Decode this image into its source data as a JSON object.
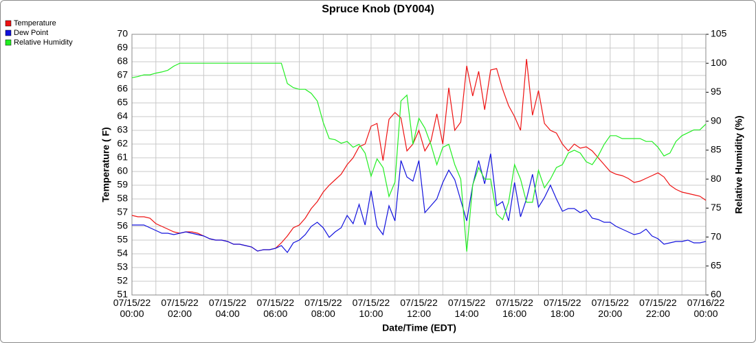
{
  "chart_data": {
    "type": "line",
    "title": "Spruce Knob (DY004)",
    "x_label": "Date/Time (EDT)",
    "y_label": "Temperature ( F)",
    "y2_label": "Relative Humidity (%)",
    "legend": "top-left",
    "grid": true,
    "ylim": [
      51,
      70
    ],
    "yticks": [
      51,
      52,
      53,
      54,
      55,
      56,
      57,
      58,
      59,
      60,
      61,
      62,
      63,
      64,
      65,
      66,
      67,
      68,
      69,
      70
    ],
    "y2lim": [
      60,
      105
    ],
    "y2ticks": [
      60,
      65,
      70,
      75,
      80,
      85,
      90,
      95,
      100,
      105
    ],
    "xlim": [
      "07/15/22 00:00",
      "07/16/22 00:00"
    ],
    "xticks": [
      {
        "value": "07/15/22 00:00",
        "label": [
          "07/15/22",
          "00:00"
        ]
      },
      {
        "value": "07/15/22 02:00",
        "label": [
          "07/15/22",
          "02:00"
        ]
      },
      {
        "value": "07/15/22 04:00",
        "label": [
          "07/15/22",
          "04:00"
        ]
      },
      {
        "value": "07/15/22 06:00",
        "label": [
          "07/15/22",
          "06:00"
        ]
      },
      {
        "value": "07/15/22 08:00",
        "label": [
          "07/15/22",
          "08:00"
        ]
      },
      {
        "value": "07/15/22 10:00",
        "label": [
          "07/15/22",
          "10:00"
        ]
      },
      {
        "value": "07/15/22 12:00",
        "label": [
          "07/15/22",
          "12:00"
        ]
      },
      {
        "value": "07/15/22 14:00",
        "label": [
          "07/15/22",
          "14:00"
        ]
      },
      {
        "value": "07/15/22 16:00",
        "label": [
          "07/15/22",
          "16:00"
        ]
      },
      {
        "value": "07/15/22 18:00",
        "label": [
          "07/15/22",
          "18:00"
        ]
      },
      {
        "value": "07/15/22 20:00",
        "label": [
          "07/15/22",
          "20:00"
        ]
      },
      {
        "value": "07/15/22 22:00",
        "label": [
          "07/15/22",
          "22:00"
        ]
      },
      {
        "value": "07/16/22 00:00",
        "label": [
          "07/16/22",
          "00:00"
        ]
      }
    ],
    "x": [
      "07/15/22 00:00",
      "07/15/22 00:15",
      "07/15/22 00:30",
      "07/15/22 00:45",
      "07/15/22 01:00",
      "07/15/22 01:15",
      "07/15/22 01:30",
      "07/15/22 01:45",
      "07/15/22 02:00",
      "07/15/22 02:15",
      "07/15/22 02:30",
      "07/15/22 02:45",
      "07/15/22 03:00",
      "07/15/22 03:15",
      "07/15/22 03:30",
      "07/15/22 03:45",
      "07/15/22 04:00",
      "07/15/22 04:15",
      "07/15/22 04:30",
      "07/15/22 04:45",
      "07/15/22 05:00",
      "07/15/22 05:15",
      "07/15/22 05:30",
      "07/15/22 05:45",
      "07/15/22 06:00",
      "07/15/22 06:15",
      "07/15/22 06:30",
      "07/15/22 06:45",
      "07/15/22 07:00",
      "07/15/22 07:15",
      "07/15/22 07:30",
      "07/15/22 07:45",
      "07/15/22 08:00",
      "07/15/22 08:15",
      "07/15/22 08:30",
      "07/15/22 08:45",
      "07/15/22 09:00",
      "07/15/22 09:15",
      "07/15/22 09:30",
      "07/15/22 09:45",
      "07/15/22 10:00",
      "07/15/22 10:15",
      "07/15/22 10:30",
      "07/15/22 10:45",
      "07/15/22 11:00",
      "07/15/22 11:15",
      "07/15/22 11:30",
      "07/15/22 11:45",
      "07/15/22 12:00",
      "07/15/22 12:15",
      "07/15/22 12:30",
      "07/15/22 12:45",
      "07/15/22 13:00",
      "07/15/22 13:15",
      "07/15/22 13:30",
      "07/15/22 13:45",
      "07/15/22 14:00",
      "07/15/22 14:15",
      "07/15/22 14:30",
      "07/15/22 14:45",
      "07/15/22 15:00",
      "07/15/22 15:15",
      "07/15/22 15:30",
      "07/15/22 15:45",
      "07/15/22 16:00",
      "07/15/22 16:15",
      "07/15/22 16:30",
      "07/15/22 16:45",
      "07/15/22 17:00",
      "07/15/22 17:15",
      "07/15/22 17:30",
      "07/15/22 17:45",
      "07/15/22 18:00",
      "07/15/22 18:15",
      "07/15/22 18:30",
      "07/15/22 18:45",
      "07/15/22 19:00",
      "07/15/22 19:15",
      "07/15/22 19:30",
      "07/15/22 19:45",
      "07/15/22 20:00",
      "07/15/22 20:15",
      "07/15/22 20:30",
      "07/15/22 20:45",
      "07/15/22 21:00",
      "07/15/22 21:15",
      "07/15/22 21:30",
      "07/15/22 21:45",
      "07/15/22 22:00",
      "07/15/22 22:15",
      "07/15/22 22:30",
      "07/15/22 22:45",
      "07/15/22 23:00",
      "07/15/22 23:15",
      "07/15/22 23:30",
      "07/15/22 23:45",
      "07/16/22 00:00"
    ],
    "series": [
      {
        "name": "Temperature",
        "color": "#ee1111",
        "values": [
          56.8,
          56.7,
          56.7,
          56.6,
          56.2,
          56.0,
          55.8,
          55.6,
          55.5,
          55.6,
          55.6,
          55.5,
          55.3,
          55.1,
          55.0,
          55.0,
          54.9,
          54.7,
          54.7,
          54.6,
          54.5,
          54.2,
          54.3,
          54.3,
          54.4,
          54.8,
          55.3,
          55.9,
          56.1,
          56.6,
          57.3,
          57.8,
          58.5,
          59.0,
          59.4,
          59.8,
          60.5,
          61.0,
          61.8,
          62.0,
          63.3,
          63.5,
          60.8,
          63.8,
          64.3,
          63.9,
          61.5,
          62.0,
          63.0,
          61.5,
          62.2,
          64.2,
          62.0,
          66.1,
          63.0,
          63.6,
          67.7,
          65.5,
          67.3,
          64.5,
          67.4,
          67.5,
          66.0,
          64.8,
          64.0,
          63.0,
          68.2,
          64.1,
          65.9,
          63.5,
          63.0,
          62.8,
          62.0,
          61.5,
          62.0,
          61.7,
          61.8,
          61.5,
          61.0,
          60.5,
          60.0,
          59.8,
          59.7,
          59.5,
          59.2,
          59.3,
          59.5,
          59.7,
          59.9,
          59.6,
          59.0,
          58.7,
          58.5,
          58.4,
          58.3,
          58.2,
          57.9
        ]
      },
      {
        "name": "Dew Point",
        "color": "#1111dd",
        "values": [
          56.1,
          56.1,
          56.1,
          55.9,
          55.7,
          55.5,
          55.5,
          55.4,
          55.5,
          55.6,
          55.5,
          55.4,
          55.3,
          55.1,
          55.0,
          55.0,
          54.9,
          54.7,
          54.7,
          54.6,
          54.5,
          54.2,
          54.3,
          54.3,
          54.4,
          54.6,
          54.1,
          54.8,
          55.0,
          55.4,
          56.0,
          56.3,
          55.9,
          55.2,
          55.6,
          55.9,
          56.8,
          56.2,
          57.6,
          56.1,
          58.6,
          56.0,
          55.4,
          57.5,
          56.4,
          60.8,
          59.6,
          59.3,
          60.8,
          57.0,
          57.5,
          58.0,
          59.2,
          60.1,
          59.4,
          57.9,
          56.4,
          59.0,
          60.8,
          59.1,
          61.3,
          57.5,
          57.8,
          56.4,
          59.2,
          56.7,
          58.0,
          59.8,
          57.4,
          58.1,
          59.0,
          58.0,
          57.1,
          57.3,
          57.3,
          57.0,
          57.2,
          56.6,
          56.5,
          56.3,
          56.3,
          56.0,
          55.8,
          55.6,
          55.4,
          55.5,
          55.8,
          55.3,
          55.1,
          54.7,
          54.8,
          54.9,
          54.9,
          55.0,
          54.8,
          54.8,
          54.9
        ]
      },
      {
        "name": "Relative Humidity",
        "color": "#22ee22",
        "axis": "y2",
        "values": [
          97.5,
          97.7,
          98.0,
          98.0,
          98.3,
          98.5,
          98.8,
          99.5,
          100,
          100,
          100,
          100,
          100,
          100,
          100,
          100,
          100,
          100,
          100,
          100,
          100,
          100,
          100,
          100,
          100,
          100,
          96.5,
          95.8,
          95.5,
          95.5,
          94.8,
          93.5,
          89.8,
          87.0,
          86.8,
          86.2,
          86.5,
          85.5,
          86.0,
          84.5,
          80.5,
          83.5,
          82.0,
          77.0,
          79.5,
          93.5,
          94.5,
          86.0,
          90.5,
          88.8,
          86.0,
          82.5,
          85.5,
          86.0,
          82.5,
          80.0,
          67.5,
          79.0,
          82.0,
          80.0,
          80.0,
          74.0,
          73.0,
          76.0,
          82.5,
          80.0,
          76.0,
          76.0,
          81.5,
          78.5,
          80.0,
          82.0,
          82.5,
          84.5,
          85.0,
          84.5,
          83.0,
          82.5,
          84.0,
          86.0,
          87.5,
          87.5,
          87.0,
          87.0,
          87.0,
          87.0,
          86.5,
          86.5,
          85.5,
          84.0,
          84.5,
          86.5,
          87.5,
          88.0,
          88.5,
          88.5,
          89.5
        ]
      }
    ]
  }
}
